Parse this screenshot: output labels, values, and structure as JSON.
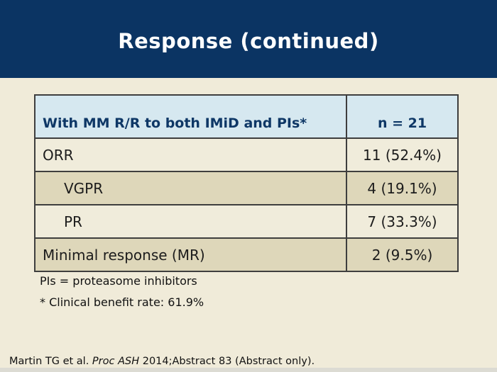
{
  "slide": {
    "title": "Response (continued)"
  },
  "colors": {
    "header_band": "#0b3463",
    "background": "#f0ebd9",
    "title_text": "#ffffff",
    "table_header_bg": "#d6e8f0",
    "header_text": "#0e3766",
    "row_light": "#f0ecdb",
    "row_tan": "#ded7ba"
  },
  "table": {
    "header": {
      "label": "With MM R/R to both IMiD and PIs*",
      "value": "n = 21"
    },
    "rows": [
      {
        "label": "ORR",
        "value": "11 (52.4%)",
        "indented": false
      },
      {
        "label": "VGPR",
        "value": "4 (19.1%)",
        "indented": true
      },
      {
        "label": "PR",
        "value": "7 (33.3%)",
        "indented": true
      },
      {
        "label": "Minimal response (MR)",
        "value": "2 (9.5%)",
        "indented": false
      }
    ]
  },
  "footnotes": {
    "line1": "PIs = proteasome inhibitors",
    "line2": "* Clinical benefit rate: 61.9%"
  },
  "citation": {
    "prefix": "Martin TG et al. ",
    "italic": "Proc ASH",
    "suffix": " 2014;Abstract 83 (Abstract only)."
  }
}
